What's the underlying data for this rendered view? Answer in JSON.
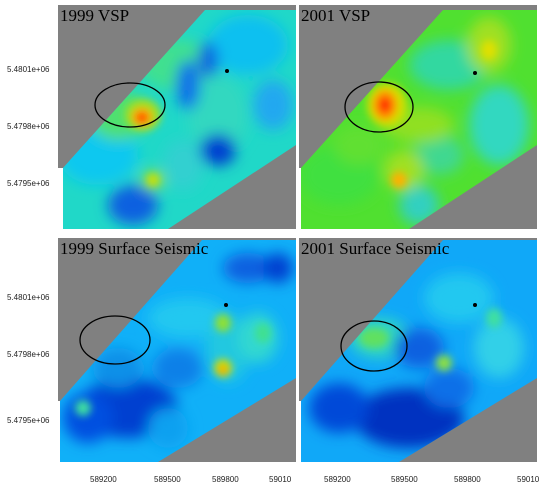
{
  "panels": [
    {
      "title": "1999 VSP"
    },
    {
      "title": "2001 VSP"
    },
    {
      "title": "1999 Surface Seismic"
    },
    {
      "title": "2001 Surface Seismic"
    }
  ],
  "y_ticks": {
    "top": [
      "5.4801e+06",
      "5.4798e+06",
      "5.4795e+06"
    ],
    "bottom": [
      "5.4801e+06",
      "5.4798e+06",
      "5.4795e+06"
    ]
  },
  "x_ticks": {
    "left": [
      "589200",
      "589500",
      "589800",
      "59010"
    ],
    "right": [
      "589200",
      "589500",
      "589800",
      "59010"
    ]
  },
  "colors": {
    "background": "#808080",
    "colormap": [
      "#0000b0",
      "#0050e0",
      "#00c0ff",
      "#00e090",
      "#60e020",
      "#e0e000",
      "#ff8000",
      "#ff2000"
    ]
  },
  "icons": {
    "well_marker": "dot-icon",
    "anomaly_marker": "ellipse-outline-icon"
  }
}
